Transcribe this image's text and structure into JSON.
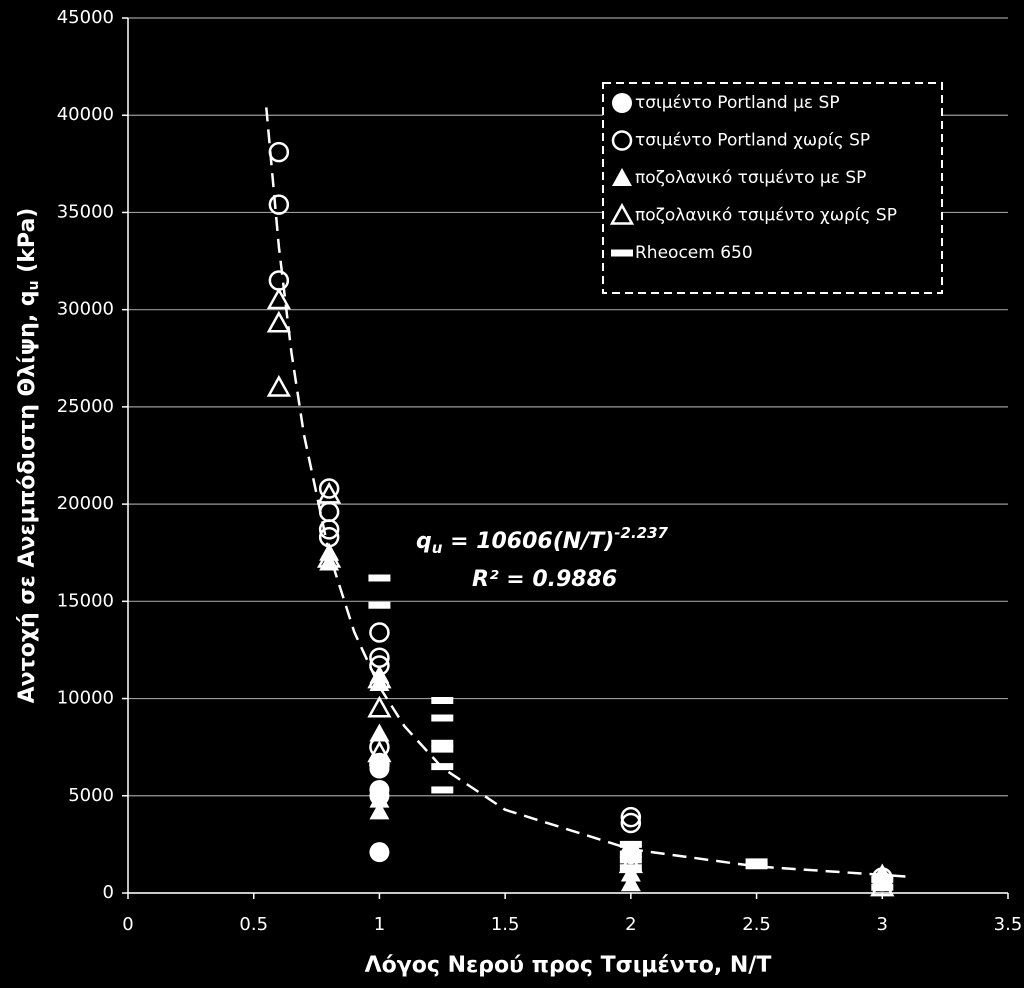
{
  "chart_data": {
    "type": "scatter",
    "xlabel": "Λόγος Νερού προς Τσιμέντο, Ν/Τ",
    "ylabel": [
      "Αντοχή σε Ανεμπόδιστη Θλίψη, q",
      "u",
      " (kPa)"
    ],
    "xlim": [
      0,
      3.5
    ],
    "ylim": [
      0,
      45000
    ],
    "xticks": [
      0,
      0.5,
      1,
      1.5,
      2,
      2.5,
      3,
      3.5
    ],
    "yticks": [
      0,
      5000,
      10000,
      15000,
      20000,
      25000,
      30000,
      35000,
      40000,
      45000
    ],
    "grid": true,
    "legend": "upper right",
    "equation": [
      "q",
      "u",
      " = 10606(N/T)",
      "-2.237"
    ],
    "r_squared": "R² = 0.9886",
    "series": [
      {
        "name": "τσιμέντο Portland  με SP",
        "marker": "circle",
        "color": "#ffffff",
        "x": [
          1,
          1,
          1,
          1,
          1,
          2,
          3
        ],
        "values": [
          2100,
          5000,
          5300,
          6400,
          6700,
          2000,
          600
        ]
      },
      {
        "name": "τσιμέντο Portland χωρίς  SP",
        "marker": "circle-open",
        "color": "#ffffff",
        "x": [
          0.6,
          0.6,
          0.6,
          0.8,
          0.8,
          0.8,
          0.8,
          1,
          1,
          1,
          1,
          1,
          2,
          2,
          3
        ],
        "values": [
          38100,
          35400,
          31500,
          20800,
          19600,
          18700,
          18300,
          13400,
          12100,
          11700,
          7500,
          6600,
          3900,
          3600,
          800
        ]
      },
      {
        "name": "ποζολανικό τσιμέντο με SP",
        "marker": "triangle",
        "color": "#ffffff",
        "x": [
          0.8,
          0.8,
          1,
          1,
          1,
          1,
          1,
          2,
          2,
          3,
          3
        ],
        "values": [
          17000,
          17500,
          4200,
          4800,
          8200,
          10800,
          11200,
          500,
          1000,
          500,
          1000
        ]
      },
      {
        "name": "ποζολανικό τσιμέντο χωρίς SP",
        "marker": "triangle-open",
        "color": "#ffffff",
        "x": [
          0.6,
          0.6,
          0.6,
          0.8,
          0.8,
          1,
          1,
          1,
          2,
          3
        ],
        "values": [
          30500,
          29300,
          26000,
          20500,
          17200,
          9500,
          11000,
          7200,
          1500,
          300
        ]
      },
      {
        "name": "Rheocem 650",
        "marker": "dash",
        "color": "#ffffff",
        "x": [
          1,
          1,
          1.25,
          1.25,
          1.25,
          1.25,
          1.25,
          1.25,
          2,
          2,
          2,
          2,
          2.5,
          2.5,
          3,
          3
        ],
        "values": [
          16200,
          14800,
          9900,
          9000,
          7700,
          7400,
          6500,
          5300,
          2500,
          2000,
          1700,
          1300,
          1600,
          1400,
          700,
          300
        ]
      }
    ],
    "trendline": {
      "color": "#ffffff",
      "x": [
        0.55,
        0.6,
        0.65,
        0.7,
        0.8,
        0.9,
        1,
        1.1,
        1.25,
        1.5,
        2,
        2.5,
        3.1
      ],
      "values": [
        40400,
        33250,
        27800,
        23560,
        17470,
        13420,
        10606,
        8570,
        6440,
        4282,
        2250,
        1366,
        844
      ]
    }
  }
}
